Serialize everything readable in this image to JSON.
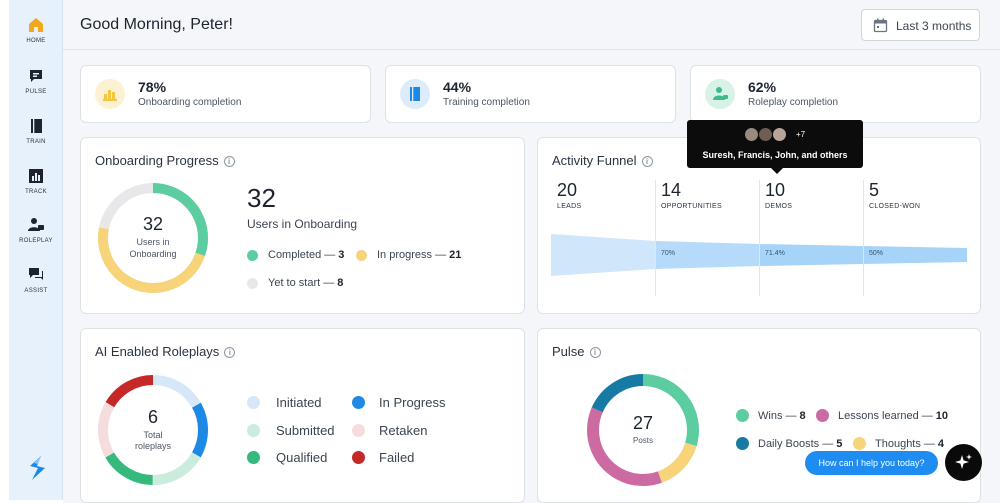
{
  "sidebar": {
    "items": [
      {
        "label": "HOME",
        "icon": "home-icon",
        "active": true
      },
      {
        "label": "PULSE",
        "icon": "chat-icon"
      },
      {
        "label": "TRAIN",
        "icon": "book-icon"
      },
      {
        "label": "TRACK",
        "icon": "chart-icon"
      },
      {
        "label": "ROLEPLAY",
        "icon": "roleplay-icon"
      },
      {
        "label": "ASSIST",
        "icon": "assist-icon"
      }
    ],
    "brand_icon": "brand-logo-icon"
  },
  "header": {
    "greeting": "Good Morning, Peter!",
    "date_range": "Last 3 months",
    "date_icon": "calendar-icon"
  },
  "stats": [
    {
      "value": "78%",
      "label": "Onboarding completion",
      "color": "#f5c542",
      "icon": "onboarding-icon"
    },
    {
      "value": "44%",
      "label": "Training completion",
      "color": "#1e88e5",
      "icon": "training-icon"
    },
    {
      "value": "62%",
      "label": "Roleplay completion",
      "color": "#3dbb8a",
      "icon": "roleplay-icon"
    }
  ],
  "onboarding": {
    "title": "Onboarding Progress",
    "center_value": "32",
    "center_label_1": "Users in",
    "center_label_2": "Onboarding",
    "big_value": "32",
    "big_label": "Users in Onboarding",
    "legend": [
      {
        "label": "Completed —",
        "value": "3",
        "color": "#5ccda0"
      },
      {
        "label": "In progress —",
        "value": "21",
        "color": "#f7d37a"
      },
      {
        "label": "Yet to start —",
        "value": "8",
        "color": "#e8e8ea"
      }
    ]
  },
  "funnel": {
    "title": "Activity Funnel",
    "stages": [
      {
        "value": "20",
        "label": "LEADS"
      },
      {
        "value": "14",
        "label": "OPPORTUNITIES"
      },
      {
        "value": "10",
        "label": "DEMOS"
      },
      {
        "value": "5",
        "label": "CLOSED-WON"
      }
    ],
    "conversions": [
      "70%",
      "71.4%",
      "50%"
    ],
    "tooltip": {
      "more": "+7",
      "text": "Suresh, Francis, John, and others"
    }
  },
  "roleplays": {
    "title": "AI Enabled Roleplays",
    "center_value": "6",
    "center_label_1": "Total",
    "center_label_2": "roleplays",
    "legend": [
      {
        "label": "Initiated",
        "color": "#d6e8f7"
      },
      {
        "label": "In Progress",
        "color": "#1e88e5"
      },
      {
        "label": "Submitted",
        "color": "#c9ecdd"
      },
      {
        "label": "Retaken",
        "color": "#f6dcdc"
      },
      {
        "label": "Qualified",
        "color": "#36b97d"
      },
      {
        "label": "Failed",
        "color": "#c62828"
      }
    ]
  },
  "pulse": {
    "title": "Pulse",
    "center_value": "27",
    "center_label": "Posts",
    "legend": [
      {
        "label": "Wins —",
        "value": "8",
        "color": "#5ccda0"
      },
      {
        "label": "Lessons learned —",
        "value": "10",
        "color": "#cc6aa2"
      },
      {
        "label": "Daily Boosts —",
        "value": "5",
        "color": "#167aa5"
      },
      {
        "label": "Thoughts —",
        "value": "4",
        "color": "#f7d37a"
      }
    ]
  },
  "assistant": {
    "prompt": "How can I help you today?",
    "icon": "sparkle-icon"
  }
}
